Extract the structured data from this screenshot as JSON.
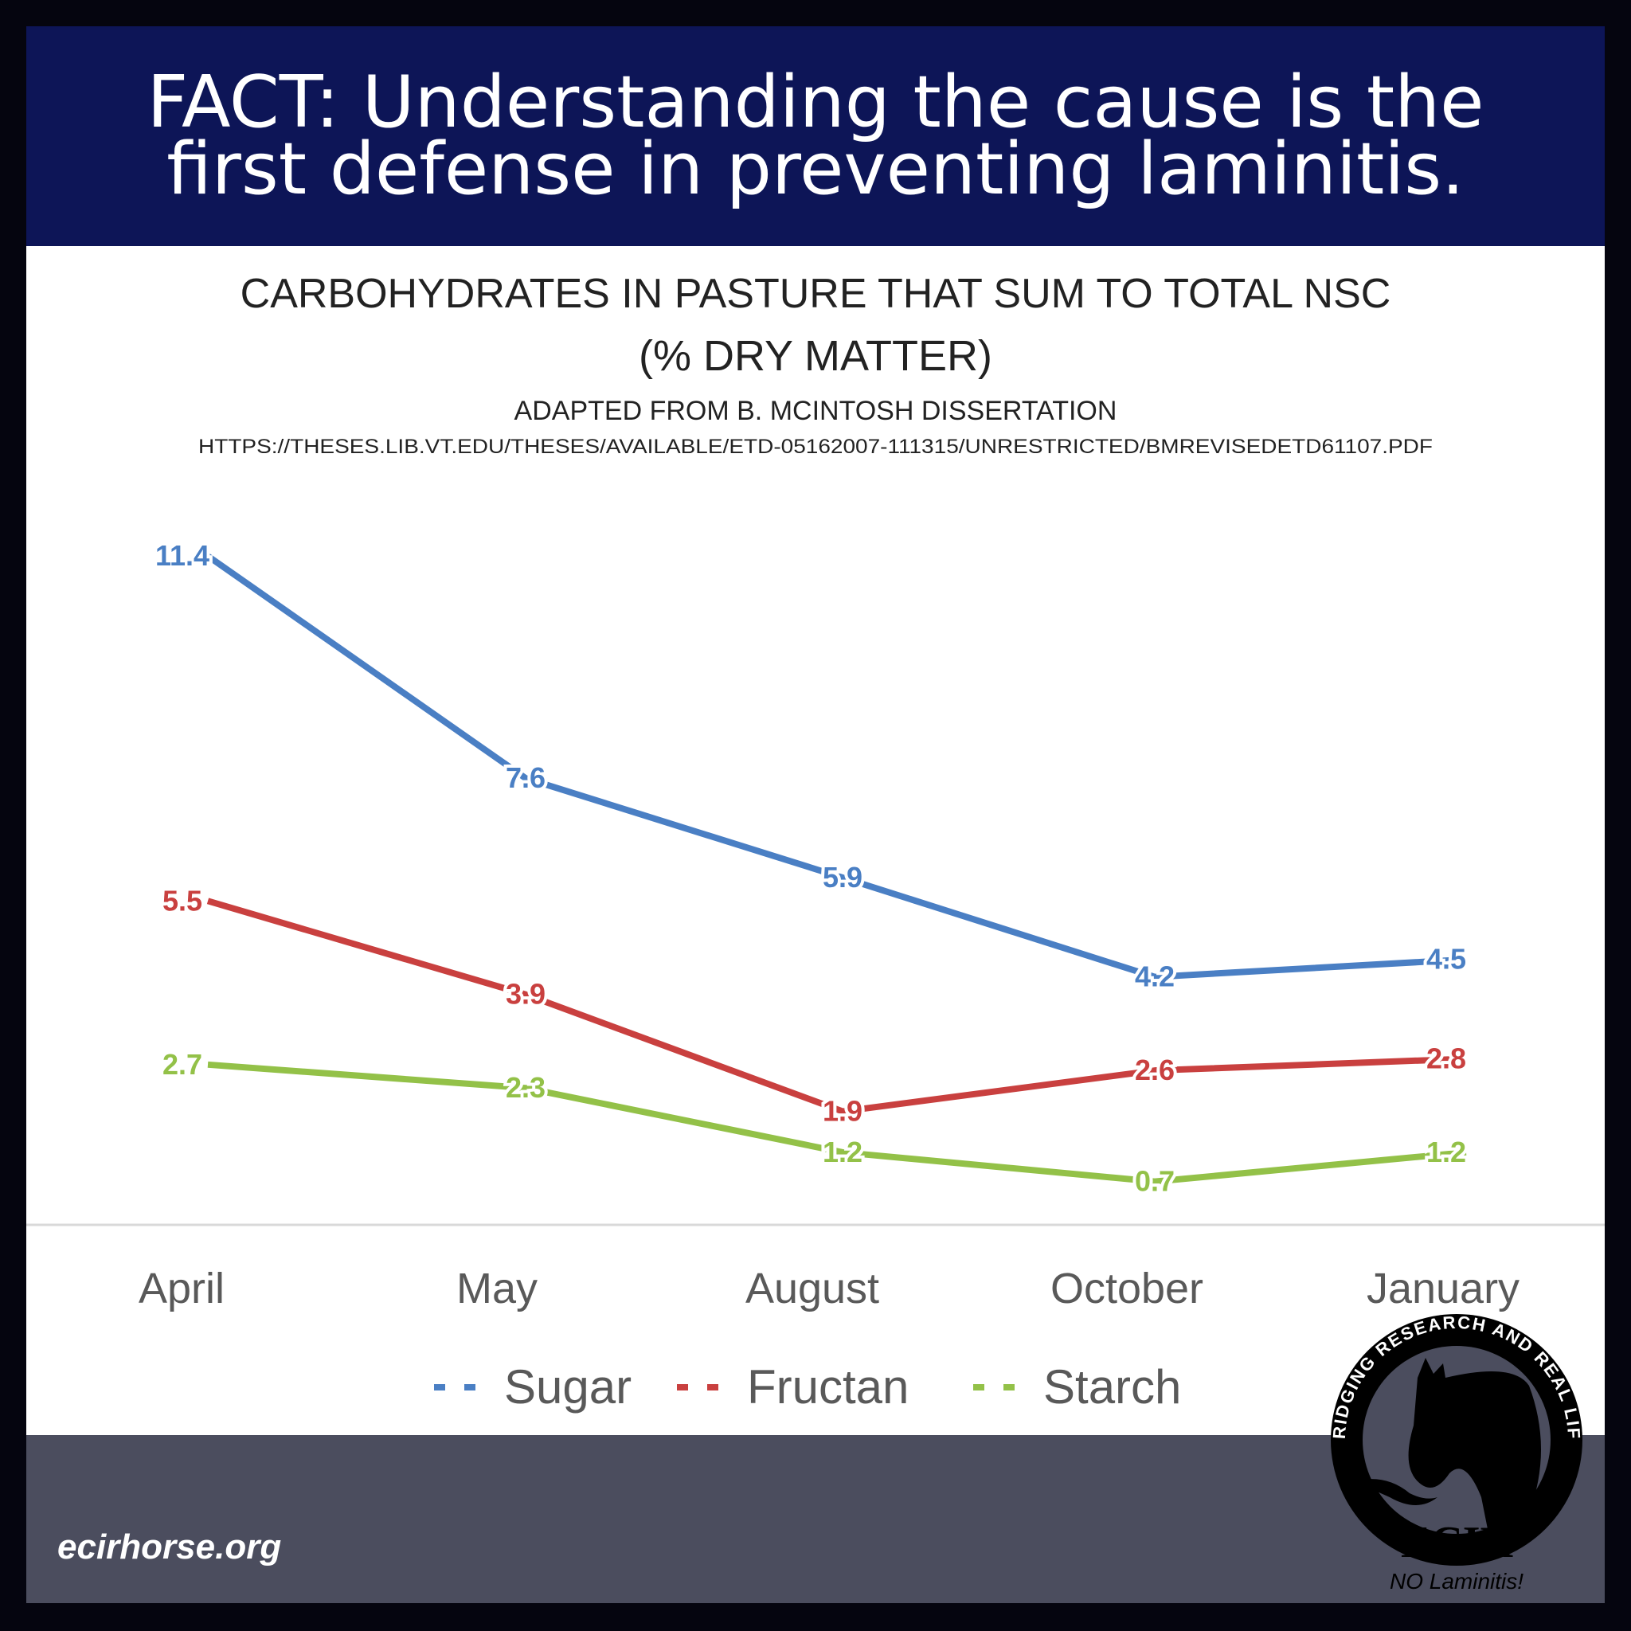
{
  "banner": {
    "line1": "FACT: Understanding the cause is the",
    "line2": "first defense in preventing laminitis."
  },
  "footer": {
    "site": "ecirhorse.org"
  },
  "logo": {
    "ring_text": "BRIDGING RESEARCH AND REAL LIFE",
    "name": "ECIR",
    "tagline": "NO Laminitis!"
  },
  "chart_data": {
    "type": "line",
    "title": "CARBOHYDRATES IN PASTURE THAT SUM TO TOTAL NSC",
    "title2": "(% DRY MATTER)",
    "subtitle": "ADAPTED FROM B. MCINTOSH DISSERTATION",
    "source": "HTTPS://THESES.LIB.VT.EDU/THESES/AVAILABLE/ETD-05162007-111315/UNRESTRICTED/BMREVISEDETD61107.PDF",
    "categories": [
      "April",
      "May",
      "August",
      "October",
      "January"
    ],
    "series": [
      {
        "name": "Sugar",
        "color": "#4a7fc4",
        "values": [
          11.4,
          7.6,
          5.9,
          4.2,
          4.5
        ]
      },
      {
        "name": "Fructan",
        "color": "#c9403f",
        "values": [
          5.5,
          3.9,
          1.9,
          2.6,
          2.8
        ]
      },
      {
        "name": "Starch",
        "color": "#93c148",
        "values": [
          2.7,
          2.3,
          1.2,
          0.7,
          1.2
        ]
      }
    ],
    "ylim": [
      0,
      12
    ],
    "legend": "bottom",
    "grid": false
  }
}
